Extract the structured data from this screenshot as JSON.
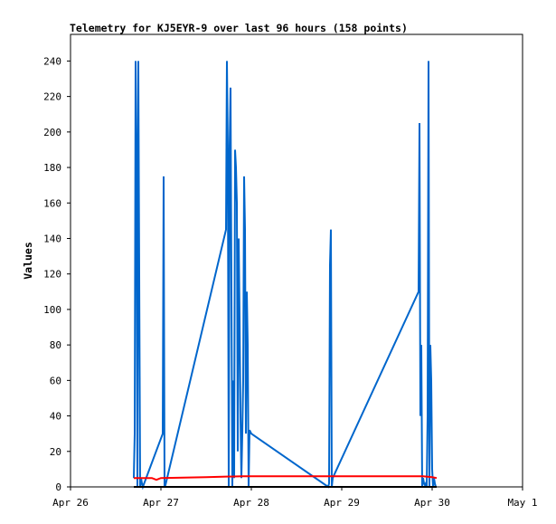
{
  "chart_data": {
    "type": "line",
    "title": "Telemetry for KJ5EYR-9 over last 96 hours (158 points)",
    "xlabel": "",
    "ylabel": "Values",
    "x_ticks": [
      "Apr 26",
      "Apr 27",
      "Apr 28",
      "Apr 29",
      "Apr 30",
      "May 1"
    ],
    "x_range_days": [
      0,
      5
    ],
    "ylim": [
      0,
      255
    ],
    "y_ticks": [
      0,
      20,
      40,
      60,
      80,
      100,
      120,
      140,
      160,
      180,
      200,
      220,
      240
    ],
    "grid": false,
    "legend": "none",
    "series": [
      {
        "color": "#0066cc",
        "x_days": [
          0.7,
          0.71,
          0.72,
          0.73,
          0.74,
          0.75,
          0.76,
          0.77,
          0.78,
          0.79,
          0.8,
          1.02,
          1.03,
          1.04,
          1.05,
          1.72,
          1.73,
          1.74,
          1.75,
          1.76,
          1.77,
          1.78,
          1.79,
          1.8,
          1.81,
          1.82,
          1.83,
          1.84,
          1.85,
          1.86,
          1.87,
          1.88,
          1.89,
          1.9,
          1.91,
          1.92,
          1.93,
          1.94,
          1.95,
          1.96,
          1.97,
          1.98,
          2.0,
          2.85,
          2.86,
          2.87,
          2.88,
          2.89,
          2.9,
          3.85,
          3.86,
          3.87,
          3.88,
          3.89,
          3.9,
          3.91,
          3.92,
          3.93,
          3.94,
          3.95,
          3.96,
          3.97,
          3.98,
          3.99,
          4.0,
          4.01,
          4.02,
          4.03,
          4.04
        ],
        "values": [
          5,
          30,
          240,
          190,
          0,
          240,
          120,
          0,
          5,
          2,
          0,
          30,
          175,
          0,
          1,
          145,
          240,
          190,
          0,
          192,
          225,
          110,
          0,
          60,
          5,
          190,
          180,
          160,
          20,
          140,
          95,
          40,
          5,
          30,
          60,
          175,
          145,
          30,
          110,
          80,
          0,
          32,
          30,
          0,
          2,
          125,
          145,
          0,
          5,
          110,
          205,
          40,
          80,
          0,
          5,
          2,
          1,
          2,
          0,
          40,
          240,
          0,
          80,
          60,
          10,
          0,
          5,
          2,
          0
        ]
      },
      {
        "color": "#ff0000",
        "x_days": [
          0.7,
          0.9,
          0.95,
          1.0,
          1.5,
          1.9,
          2.5,
          3.0,
          3.5,
          3.9,
          4.0,
          4.05
        ],
        "values": [
          5,
          5,
          4,
          5,
          5.5,
          6,
          6,
          6,
          6,
          6,
          5.5,
          5
        ]
      },
      {
        "color": "#000000",
        "x_days": [
          0.7,
          4.05
        ],
        "values": [
          0,
          0
        ]
      }
    ]
  }
}
